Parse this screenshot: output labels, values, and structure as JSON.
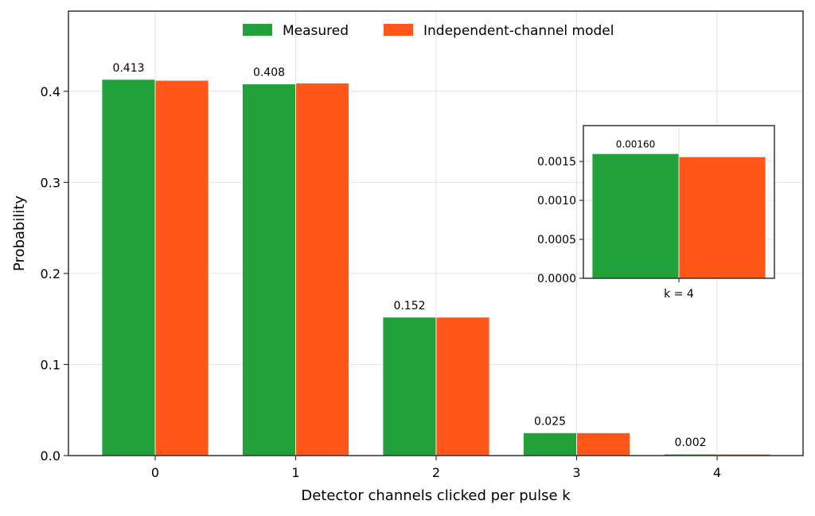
{
  "chart_data": [
    {
      "type": "bar",
      "title": "",
      "xlabel": "Detector channels clicked per pulse k",
      "ylabel": "Probability",
      "categories": [
        "0",
        "1",
        "2",
        "3",
        "4"
      ],
      "ylim": [
        0,
        0.488
      ],
      "yticks": [
        "0.0",
        "0.1",
        "0.2",
        "0.3",
        "0.4"
      ],
      "series": [
        {
          "name": "Measured",
          "values": [
            0.413,
            0.408,
            0.152,
            0.025,
            0.0016
          ],
          "color": "#22a03a"
        },
        {
          "name": "Independent-channel model",
          "values": [
            0.412,
            0.409,
            0.152,
            0.025,
            0.00156
          ],
          "color": "#ff5719"
        }
      ],
      "data_labels": [
        "0.413",
        "0.408",
        "0.152",
        "0.025",
        "0.002"
      ],
      "grid": true,
      "legend_position": "top-center"
    },
    {
      "type": "bar",
      "title": "",
      "categories": [
        "k = 4"
      ],
      "ylim": [
        0,
        0.00196
      ],
      "yticks": [
        "0.0000",
        "0.0005",
        "0.0010",
        "0.0015"
      ],
      "series": [
        {
          "name": "Measured",
          "values": [
            0.0016
          ],
          "color": "#22a03a"
        },
        {
          "name": "Independent-channel model",
          "values": [
            0.00156
          ],
          "color": "#ff5719"
        }
      ],
      "data_labels": [
        "0.00160"
      ],
      "grid": true
    }
  ]
}
